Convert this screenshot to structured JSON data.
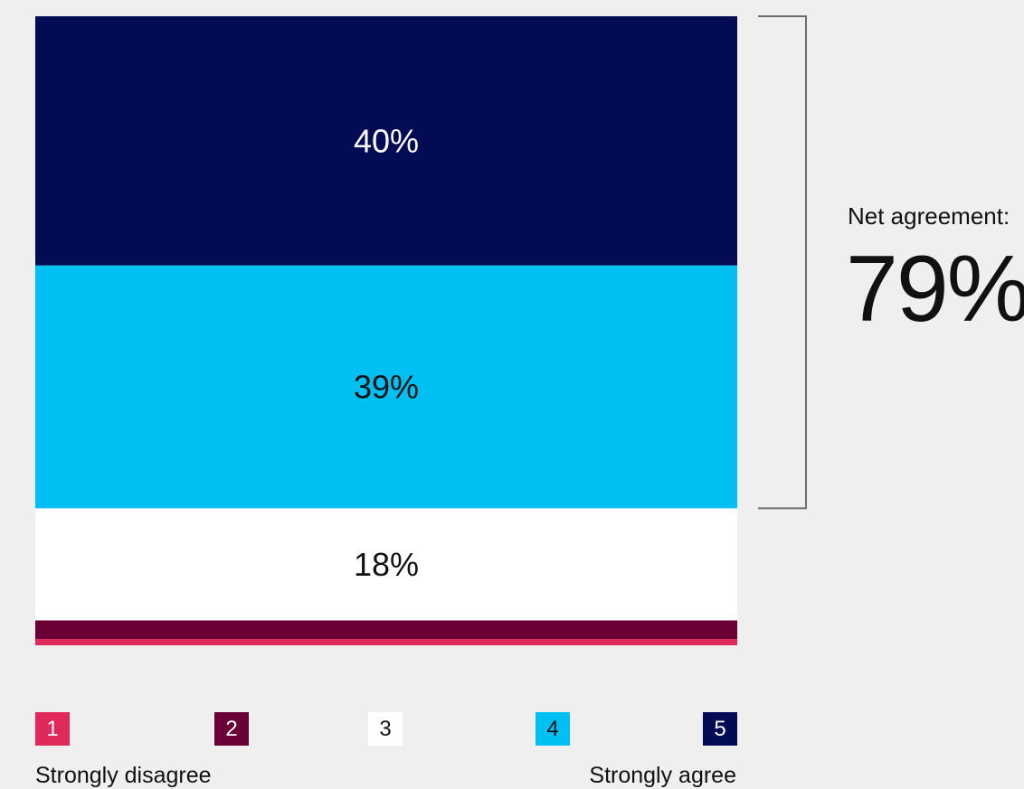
{
  "chart_data": {
    "type": "bar",
    "stacked": true,
    "orientation": "vertical",
    "categories": [
      "1",
      "2",
      "3",
      "4",
      "5"
    ],
    "values": [
      1,
      3,
      18,
      39,
      40
    ],
    "labels": [
      "",
      "",
      "18%",
      "39%",
      "40%"
    ],
    "colors": [
      "#e0295a",
      "#6b0036",
      "#ffffff",
      "#00bff2",
      "#030b55"
    ],
    "label_colors": [
      "#ffffff",
      "#ffffff",
      "#111111",
      "#111111",
      "#ffffff"
    ],
    "ylim": [
      0,
      101
    ],
    "legend": {
      "items": [
        {
          "key": "1",
          "color": "#e0295a",
          "text_color": "#ffffff"
        },
        {
          "key": "2",
          "color": "#6b0036",
          "text_color": "#ffffff"
        },
        {
          "key": "3",
          "color": "#ffffff",
          "text_color": "#111111"
        },
        {
          "key": "4",
          "color": "#00bff2",
          "text_color": "#111111"
        },
        {
          "key": "5",
          "color": "#030b55",
          "text_color": "#ffffff"
        }
      ],
      "left_text": "Strongly disagree",
      "right_text": "Strongly agree"
    },
    "annotation": {
      "caption": "Net agreement:",
      "value": "79%",
      "bracket_series": [
        "4",
        "5"
      ]
    }
  }
}
